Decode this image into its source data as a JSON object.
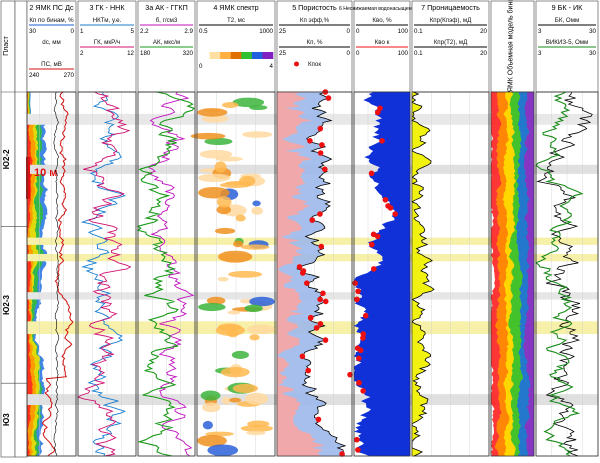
{
  "depth_track": {
    "label": "Пласт",
    "zones": [
      {
        "name": "Ю2-2",
        "top": 0.0,
        "bottom": 0.37
      },
      {
        "name": "Ю2-3",
        "top": 0.37,
        "bottom": 0.8
      },
      {
        "name": "Ю3",
        "top": 0.8,
        "bottom": 1.0
      }
    ],
    "scale_bar": {
      "label": "10 м"
    }
  },
  "tracks": [
    {
      "id": "t2",
      "title": "2 ЯМК ПС Дс",
      "curves": [
        {
          "label": "Кп по бинам, %",
          "left": "30",
          "right": "0",
          "color": "#1a5fd0"
        },
        {
          "label": "dc, мм",
          "left": "",
          "right": "",
          "color": "#000000"
        },
        {
          "label": "ПС, мВ",
          "left": "240",
          "right": "270",
          "color": "#d01010"
        }
      ]
    },
    {
      "id": "t3",
      "title": "3 ГК - ННК",
      "curves": [
        {
          "label": "НКТм, у.е.",
          "left": "1",
          "right": "5",
          "color": "#1a7fd0"
        },
        {
          "label": "ГК, мкР/ч",
          "left": "2",
          "right": "12",
          "color": "#d01070"
        }
      ]
    },
    {
      "id": "t3a",
      "title": "3а АК - ГГКП",
      "curves": [
        {
          "label": "б, г/см3",
          "left": "2.2",
          "right": "2.9",
          "color": "#c010c0"
        },
        {
          "label": "АК, мкс/м",
          "left": "180",
          "right": "320",
          "color": "#1a9a1a"
        }
      ]
    },
    {
      "id": "t4",
      "title": "4 ЯМК спектр",
      "curves": [
        {
          "label": "T2, мс",
          "left": "0.5",
          "right": "1000",
          "color": "#000000"
        }
      ],
      "colorbar": {
        "left": "0",
        "right": "4"
      }
    },
    {
      "id": "t5",
      "title": "5 Пористость",
      "curves": [
        {
          "label": "Кп эфф,%",
          "left": "25",
          "right": "0",
          "color": "#000000"
        },
        {
          "label": "Кп, %",
          "left": "25",
          "right": "0",
          "color": "#000000"
        },
        {
          "label": "Кпок",
          "left": "",
          "right": "",
          "color": "#ee1010"
        }
      ]
    },
    {
      "id": "t6",
      "title": "6 Неснижаемая водонасыщенность",
      "curves": [
        {
          "label": "Кво, %",
          "left": "0",
          "right": "100",
          "color": "#000000"
        },
        {
          "label": "Кво к",
          "left": "0",
          "right": "100",
          "color": "#ee1010"
        }
      ]
    },
    {
      "id": "t7",
      "title": "7 Проницаемость",
      "curves": [
        {
          "label": "Кпр(Кпэф), мД",
          "left": "0.1",
          "right": "20",
          "color": "#000000"
        },
        {
          "label": "Кпр(Т2), мД",
          "left": "0.1",
          "right": "20",
          "color": "#000000"
        }
      ]
    },
    {
      "id": "t8",
      "title": "8 ЯМК Объемная модель бинов",
      "curves": []
    },
    {
      "id": "t9",
      "title": "9 БК - ИК",
      "curves": [
        {
          "label": "БК, Омм",
          "left": "3",
          "right": "30",
          "color": "#000000"
        },
        {
          "label": "ВИКИЗ-5, Омм",
          "left": "3",
          "right": "30",
          "color": "#1a8a1a"
        }
      ]
    }
  ],
  "chart_data": {
    "type": "well-log",
    "title": "",
    "tracks": [
      "2 ЯМК ПС Дс",
      "3 ГК - ННК",
      "3а АК - ГГКП",
      "4 ЯМК спектр",
      "5 Пористость",
      "6 Неснижаемая водонасыщенность",
      "7 Проницаемость",
      "8 ЯМК Объемная модель бинов",
      "9 БК - ИК"
    ],
    "zones": [
      "Ю2-2",
      "Ю2-3",
      "Ю3"
    ]
  }
}
